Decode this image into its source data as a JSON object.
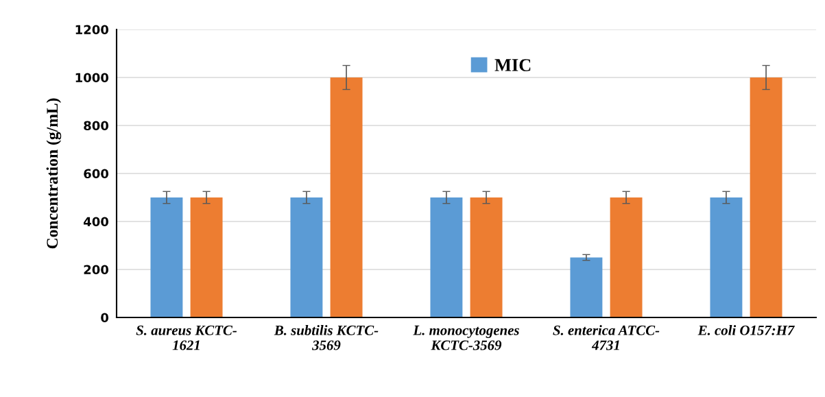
{
  "chart_data": {
    "type": "bar",
    "ylabel": "Concentration (g/mL)",
    "categories": [
      "S. aureus KCTC-\n1621",
      "B. subtilis KCTC-\n3569",
      "L. monocytogenes\nKCTC-3569",
      "S. enterica ATCC-\n4731",
      "E. coli O157:H7"
    ],
    "series": [
      {
        "name": "MIC",
        "color": "#5b9bd5",
        "values": [
          500,
          500,
          500,
          250,
          500
        ],
        "errors": [
          25,
          25,
          25,
          12,
          25
        ]
      },
      {
        "color": "#ed7d31",
        "values": [
          500,
          1000,
          500,
          500,
          1000
        ],
        "errors": [
          25,
          50,
          25,
          25,
          50
        ]
      }
    ],
    "ylim": [
      0,
      1200
    ],
    "yticks": [
      0,
      200,
      400,
      600,
      800,
      1000,
      1200
    ],
    "grid": "y",
    "legend": "top"
  }
}
